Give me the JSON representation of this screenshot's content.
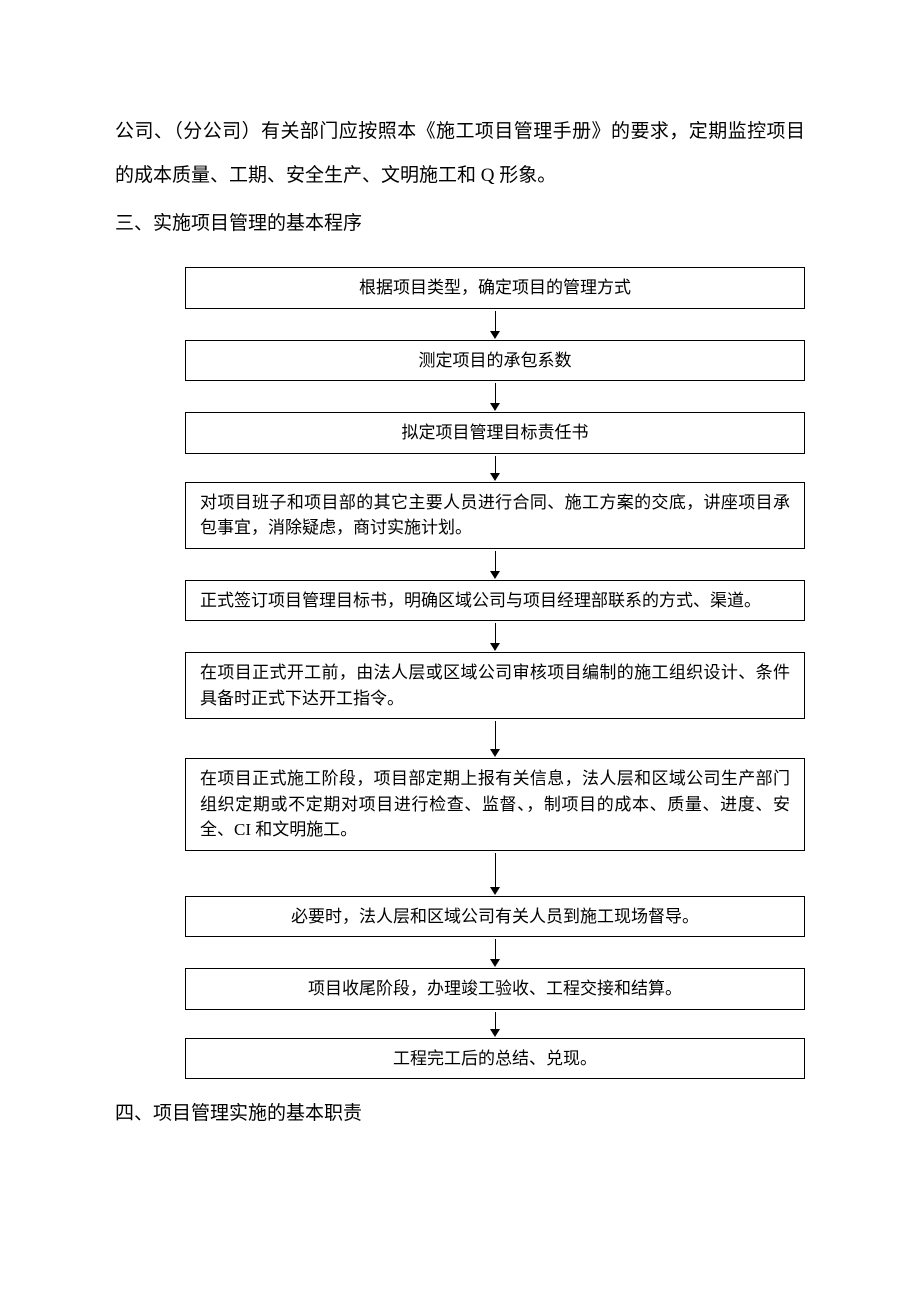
{
  "intro": {
    "para1": "公司、（分公司）有关部门应按照本《施工项目管理手册》的要求，定期监控项目的成本质量、工期、安全生产、文明施工和 Q 形象。"
  },
  "heading1": "三、实施项目管理的基本程序",
  "flowchart": {
    "type": "flowchart",
    "border_color": "#000000",
    "background_color": "#ffffff",
    "box_fontsize": 17,
    "arrows": [
      {
        "line_h": 20
      },
      {
        "line_h": 20
      },
      {
        "line_h": 17
      },
      {
        "line_h": 20
      },
      {
        "line_h": 20
      },
      {
        "line_h": 28
      },
      {
        "line_h": 34
      },
      {
        "line_h": 20
      },
      {
        "line_h": 17
      }
    ],
    "nodes": [
      {
        "text": "根据项目类型，确定项目的管理方式",
        "align": "center"
      },
      {
        "text": "测定项目的承包系数",
        "align": "center"
      },
      {
        "text": "拟定项目管理目标责任书",
        "align": "center"
      },
      {
        "text": "对项目班子和项目部的其它主要人员进行合同、施工方案的交底，讲座项目承包事宜，消除疑虑，商讨实施计划。",
        "align": "left"
      },
      {
        "text": "正式签订项目管理目标书，明确区域公司与项目经理部联系的方式、渠道。",
        "align": "left"
      },
      {
        "text": "在项目正式开工前，由法人层或区域公司审核项目编制的施工组织设计、条件具备时正式下达开工指令。",
        "align": "left"
      },
      {
        "text": "在项目正式施工阶段，项目部定期上报有关信息，法人层和区域公司生产部门组织定期或不定期对项目进行检查、监督、，制项目的成本、质量、进度、安全、CI 和文明施工。",
        "align": "left"
      },
      {
        "text": "必要时，法人层和区域公司有关人员到施工现场督导。",
        "align": "center"
      },
      {
        "text": "项目收尾阶段，办理竣工验收、工程交接和结算。",
        "align": "center"
      },
      {
        "text": "工程完工后的总结、兑现。",
        "align": "center"
      }
    ]
  },
  "heading2": "四、项目管理实施的基本职责"
}
